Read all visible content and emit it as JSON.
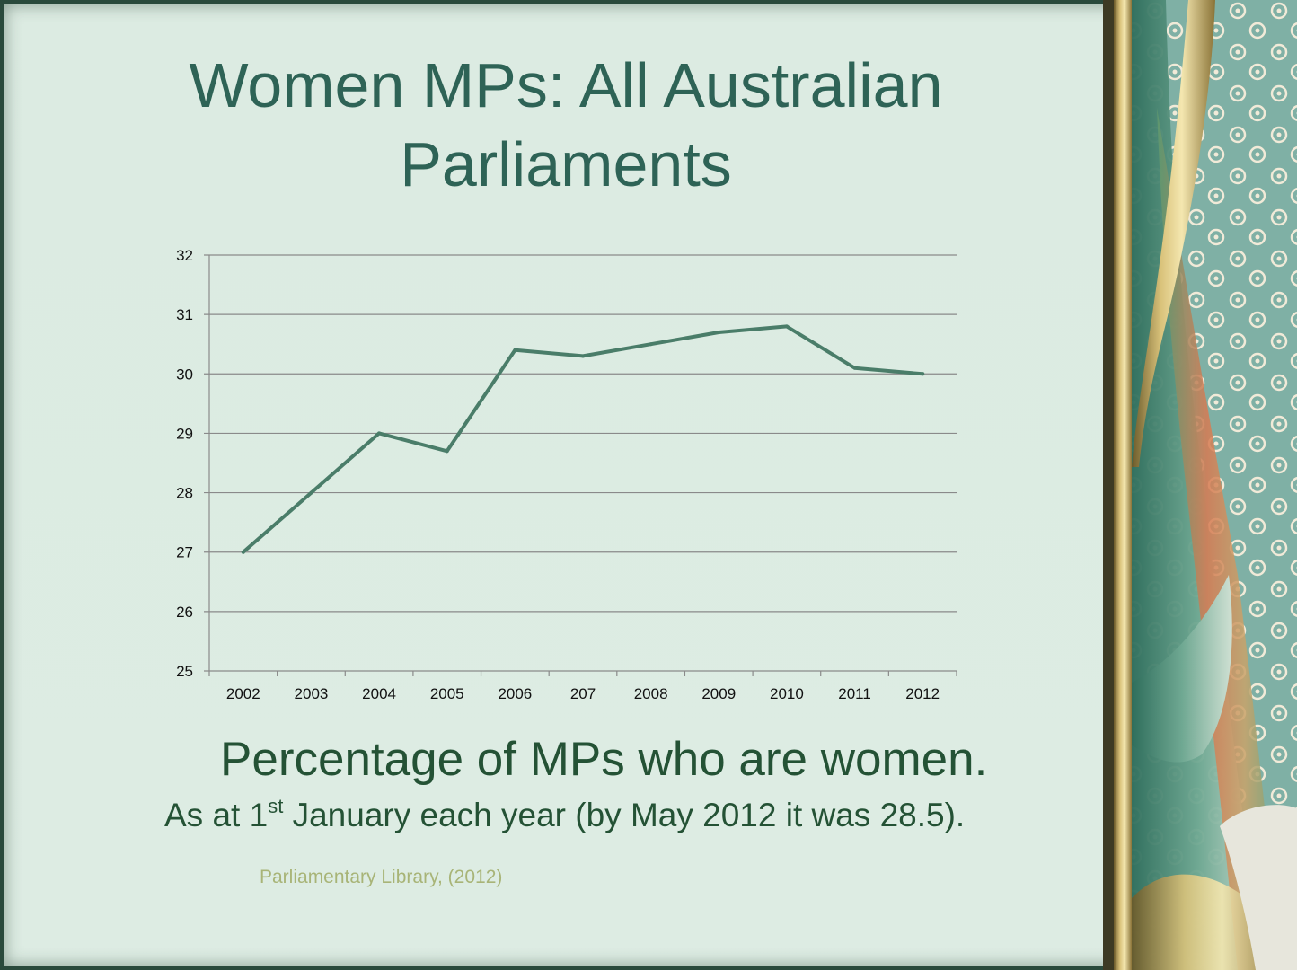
{
  "slide": {
    "title_line1": "Women MPs: All Australian",
    "title_line2": "Parliaments",
    "caption_main": "Percentage of MPs who are women.",
    "caption_sub_prefix": "As at 1",
    "caption_sub_sup": "st",
    "caption_sub_suffix": " January each year (by May 2012 it was 28.5).",
    "source": "Parliamentary Library, (2012)"
  },
  "colors": {
    "title": "#2e6356",
    "caption": "#245235",
    "source": "#a8b477",
    "line": "#4a7d69",
    "grid": "#8a8a8a",
    "background": "#dcebe2"
  },
  "chart_data": {
    "type": "line",
    "categories": [
      "2002",
      "2003",
      "2004",
      "2005",
      "2006",
      "207",
      "2008",
      "2009",
      "2010",
      "2011",
      "2012"
    ],
    "series": [
      {
        "values": [
          27.0,
          28.0,
          29.0,
          28.7,
          30.4,
          30.3,
          30.5,
          30.7,
          30.8,
          30.1,
          30.0
        ]
      }
    ],
    "y_ticks": [
      "25",
      "26",
      "27",
      "28",
      "29",
      "30",
      "31",
      "32"
    ],
    "ylim": [
      25,
      32
    ],
    "grid": true,
    "legend": "none",
    "title": "",
    "xlabel": "",
    "ylabel": ""
  }
}
